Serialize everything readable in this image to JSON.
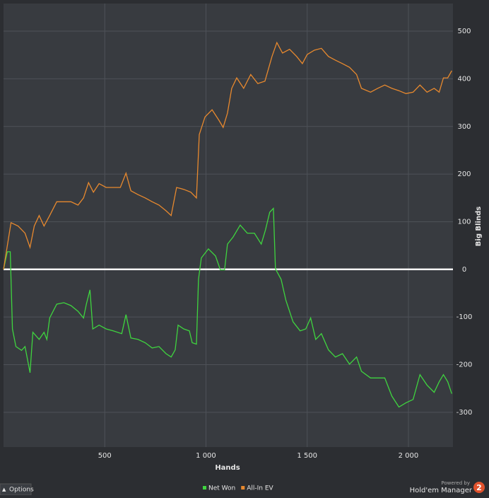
{
  "chart_data": {
    "type": "line",
    "x_label": "Hands",
    "y_label": "Big Blinds",
    "xlim": [
      0,
      2220
    ],
    "ylim": [
      -373,
      558
    ],
    "xticks": [
      500,
      {
        "value": 1000,
        "label": "1 000"
      },
      {
        "value": 1500,
        "label": "1 500"
      },
      {
        "value": 2000,
        "label": "2 000"
      }
    ],
    "yticks": [
      500,
      400,
      300,
      200,
      100,
      0,
      -100,
      -200,
      -300
    ],
    "grid": true,
    "series": [
      {
        "name": "Net Won",
        "color": "#3fd43f",
        "x": [
          0,
          19,
          33,
          44,
          61,
          89,
          106,
          131,
          145,
          176,
          200,
          214,
          228,
          263,
          298,
          333,
          368,
          395,
          409,
          427,
          441,
          472,
          507,
          542,
          584,
          605,
          629,
          664,
          700,
          734,
          768,
          803,
          828,
          848,
          862,
          890,
          918,
          932,
          953,
          963,
          977,
          1012,
          1047,
          1071,
          1092,
          1106,
          1134,
          1169,
          1204,
          1239,
          1273,
          1294,
          1315,
          1333,
          1343,
          1371,
          1395,
          1430,
          1465,
          1493,
          1517,
          1542,
          1570,
          1605,
          1639,
          1674,
          1709,
          1744,
          1768,
          1813,
          1848,
          1883,
          1918,
          1953,
          1988,
          2023,
          2057,
          2092,
          2127,
          2152,
          2173,
          2194,
          2214
        ],
        "values": [
          0,
          37,
          37,
          -125,
          -162,
          -170,
          -162,
          -217,
          -132,
          -147,
          -132,
          -147,
          -102,
          -73,
          -70,
          -76,
          -88,
          -102,
          -73,
          -43,
          -125,
          -117,
          -125,
          -129,
          -135,
          -95,
          -144,
          -147,
          -154,
          -165,
          -162,
          -177,
          -184,
          -169,
          -117,
          -125,
          -129,
          -154,
          -157,
          -21,
          24,
          43,
          28,
          -1,
          -1,
          53,
          68,
          93,
          76,
          76,
          53,
          83,
          120,
          128,
          1,
          -21,
          -65,
          -110,
          -129,
          -125,
          -102,
          -147,
          -135,
          -169,
          -184,
          -177,
          -199,
          -184,
          -214,
          -228,
          -228,
          -228,
          -266,
          -289,
          -280,
          -273,
          -221,
          -243,
          -258,
          -236,
          -221,
          -236,
          -261
        ]
      },
      {
        "name": "All-In EV",
        "color": "#e8892e",
        "x": [
          0,
          37,
          72,
          106,
          131,
          152,
          176,
          200,
          228,
          263,
          298,
          333,
          368,
          395,
          420,
          444,
          472,
          507,
          542,
          577,
          605,
          629,
          664,
          700,
          734,
          768,
          803,
          828,
          855,
          890,
          925,
          953,
          967,
          995,
          1030,
          1064,
          1085,
          1106,
          1127,
          1152,
          1186,
          1221,
          1256,
          1291,
          1326,
          1350,
          1378,
          1413,
          1448,
          1476,
          1500,
          1535,
          1570,
          1605,
          1639,
          1674,
          1709,
          1744,
          1768,
          1813,
          1848,
          1883,
          1918,
          1953,
          1988,
          2023,
          2057,
          2092,
          2127,
          2152,
          2173,
          2194,
          2214
        ],
        "values": [
          0,
          98,
          91,
          76,
          46,
          91,
          113,
          91,
          113,
          142,
          142,
          142,
          135,
          150,
          182,
          162,
          180,
          172,
          172,
          172,
          202,
          165,
          157,
          150,
          142,
          135,
          123,
          113,
          172,
          168,
          162,
          150,
          283,
          320,
          335,
          313,
          298,
          328,
          380,
          402,
          380,
          409,
          390,
          395,
          447,
          476,
          454,
          462,
          447,
          432,
          451,
          460,
          464,
          447,
          439,
          432,
          424,
          409,
          380,
          372,
          380,
          387,
          380,
          375,
          369,
          372,
          387,
          372,
          380,
          372,
          402,
          402,
          417
        ]
      }
    ]
  },
  "ui": {
    "options": "Options",
    "powered_by": "Powered by",
    "brand": "Hold'em Manager",
    "brand_badge": "2"
  }
}
